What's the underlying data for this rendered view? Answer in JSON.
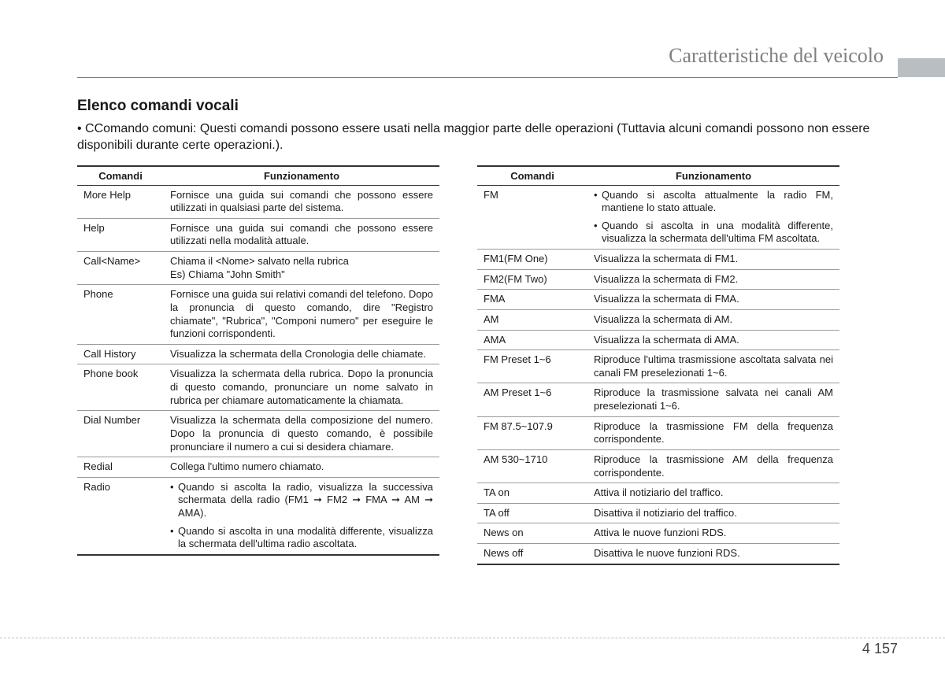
{
  "chapter_title": "Caratteristiche del veicolo",
  "section_title": "Elenco comandi vocali",
  "intro": "• CComando comuni: Questi comandi possono essere usati nella maggior parte delle operazioni (Tuttavia alcuni comandi possono non essere disponibili durante certe operazioni.).",
  "headers": {
    "cmd": "Comandi",
    "func": "Funzionamento"
  },
  "left": {
    "col_widths": {
      "cmd": 110,
      "func": 350
    },
    "rows": [
      {
        "cmd": "More Help",
        "func": "Fornisce una guida sui comandi che possono essere utilizzati in qualsiasi parte del sistema."
      },
      {
        "cmd": "Help",
        "func": "Fornisce una guida sui comandi che possono essere utilizzati nella modalità attuale."
      },
      {
        "cmd": "Call<Name>",
        "func": "Chiama il <Nome> salvato nella rubrica\nEs) Chiama \"John Smith\""
      },
      {
        "cmd": "Phone",
        "func": "Fornisce una guida sui relativi comandi del telefono. Dopo la pronuncia di questo comando, dire \"Registro chiamate\", \"Rubrica\", \"Componi numero\" per eseguire le funzioni corrispondenti."
      },
      {
        "cmd": "Call History",
        "func": "Visualizza la schermata della Cronologia delle chiamate."
      },
      {
        "cmd": "Phone book",
        "func": "Visualizza la schermata della rubrica. Dopo la pronuncia di questo comando, pronunciare un nome salvato in rubrica per chiamare automaticamente la chiamata."
      },
      {
        "cmd": "Dial Number",
        "func": "Visualizza la schermata della composizione del numero. Dopo la pronuncia di questo comando, è possibile pronunciare il numero a cui si desidera chiamare."
      },
      {
        "cmd": "Redial",
        "func": "Collega l'ultimo numero chiamato."
      },
      {
        "cmd": "Radio",
        "bullets": [
          "Quando si ascolta la radio, visualizza la successiva schermata della radio (FM1 ➞ FM2 ➞ FMA ➞ AM ➞ AMA).",
          "Quando si ascolta in una modalità differente, visualizza la schermata dell'ultima radio ascoltata."
        ]
      }
    ]
  },
  "right": {
    "col_widths": {
      "cmd": 140,
      "func": 320
    },
    "rows": [
      {
        "cmd": "FM",
        "bullets": [
          "Quando si ascolta attualmente la radio FM, mantiene lo stato attuale.",
          "Quando si ascolta in una modalità differente, visualizza la schermata dell'ultima FM ascoltata."
        ]
      },
      {
        "cmd": "FM1(FM One)",
        "func": "Visualizza la schermata di FM1."
      },
      {
        "cmd": "FM2(FM Two)",
        "func": "Visualizza la schermata di FM2."
      },
      {
        "cmd": "FMA",
        "func": "Visualizza la schermata di FMA."
      },
      {
        "cmd": "AM",
        "func": "Visualizza la schermata di AM."
      },
      {
        "cmd": "AMA",
        "func": "Visualizza la schermata di AMA."
      },
      {
        "cmd": "FM Preset 1~6",
        "func": "Riproduce l'ultima trasmissione ascoltata salvata nei canali FM preselezionati 1~6."
      },
      {
        "cmd": "AM Preset 1~6",
        "func": "Riproduce la trasmissione salvata nei canali AM preselezionati 1~6."
      },
      {
        "cmd": "FM 87.5~107.9",
        "func": "Riproduce la trasmissione FM della frequenza corrispondente."
      },
      {
        "cmd": "AM 530~1710",
        "func": "Riproduce la trasmissione AM della frequenza corrispondente."
      },
      {
        "cmd": "TA on",
        "func": "Attiva il notiziario del traffico."
      },
      {
        "cmd": "TA off",
        "func": "Disattiva il notiziario del traffico."
      },
      {
        "cmd": "News on",
        "func": "Attiva le nuove funzioni RDS."
      },
      {
        "cmd": "News off",
        "func": "Disattiva le nuove funzioni RDS."
      }
    ]
  },
  "footer": {
    "section": "4",
    "page": "157"
  },
  "colors": {
    "text": "#1a1a1a",
    "chapter": "#808080",
    "rule": "#7a7a7a",
    "tab": "#b9bec2",
    "cell_border": "#9a9a9a"
  },
  "typography": {
    "chapter_fontsize": 26,
    "section_fontsize": 19,
    "intro_fontsize": 16,
    "table_fontsize": 13
  }
}
